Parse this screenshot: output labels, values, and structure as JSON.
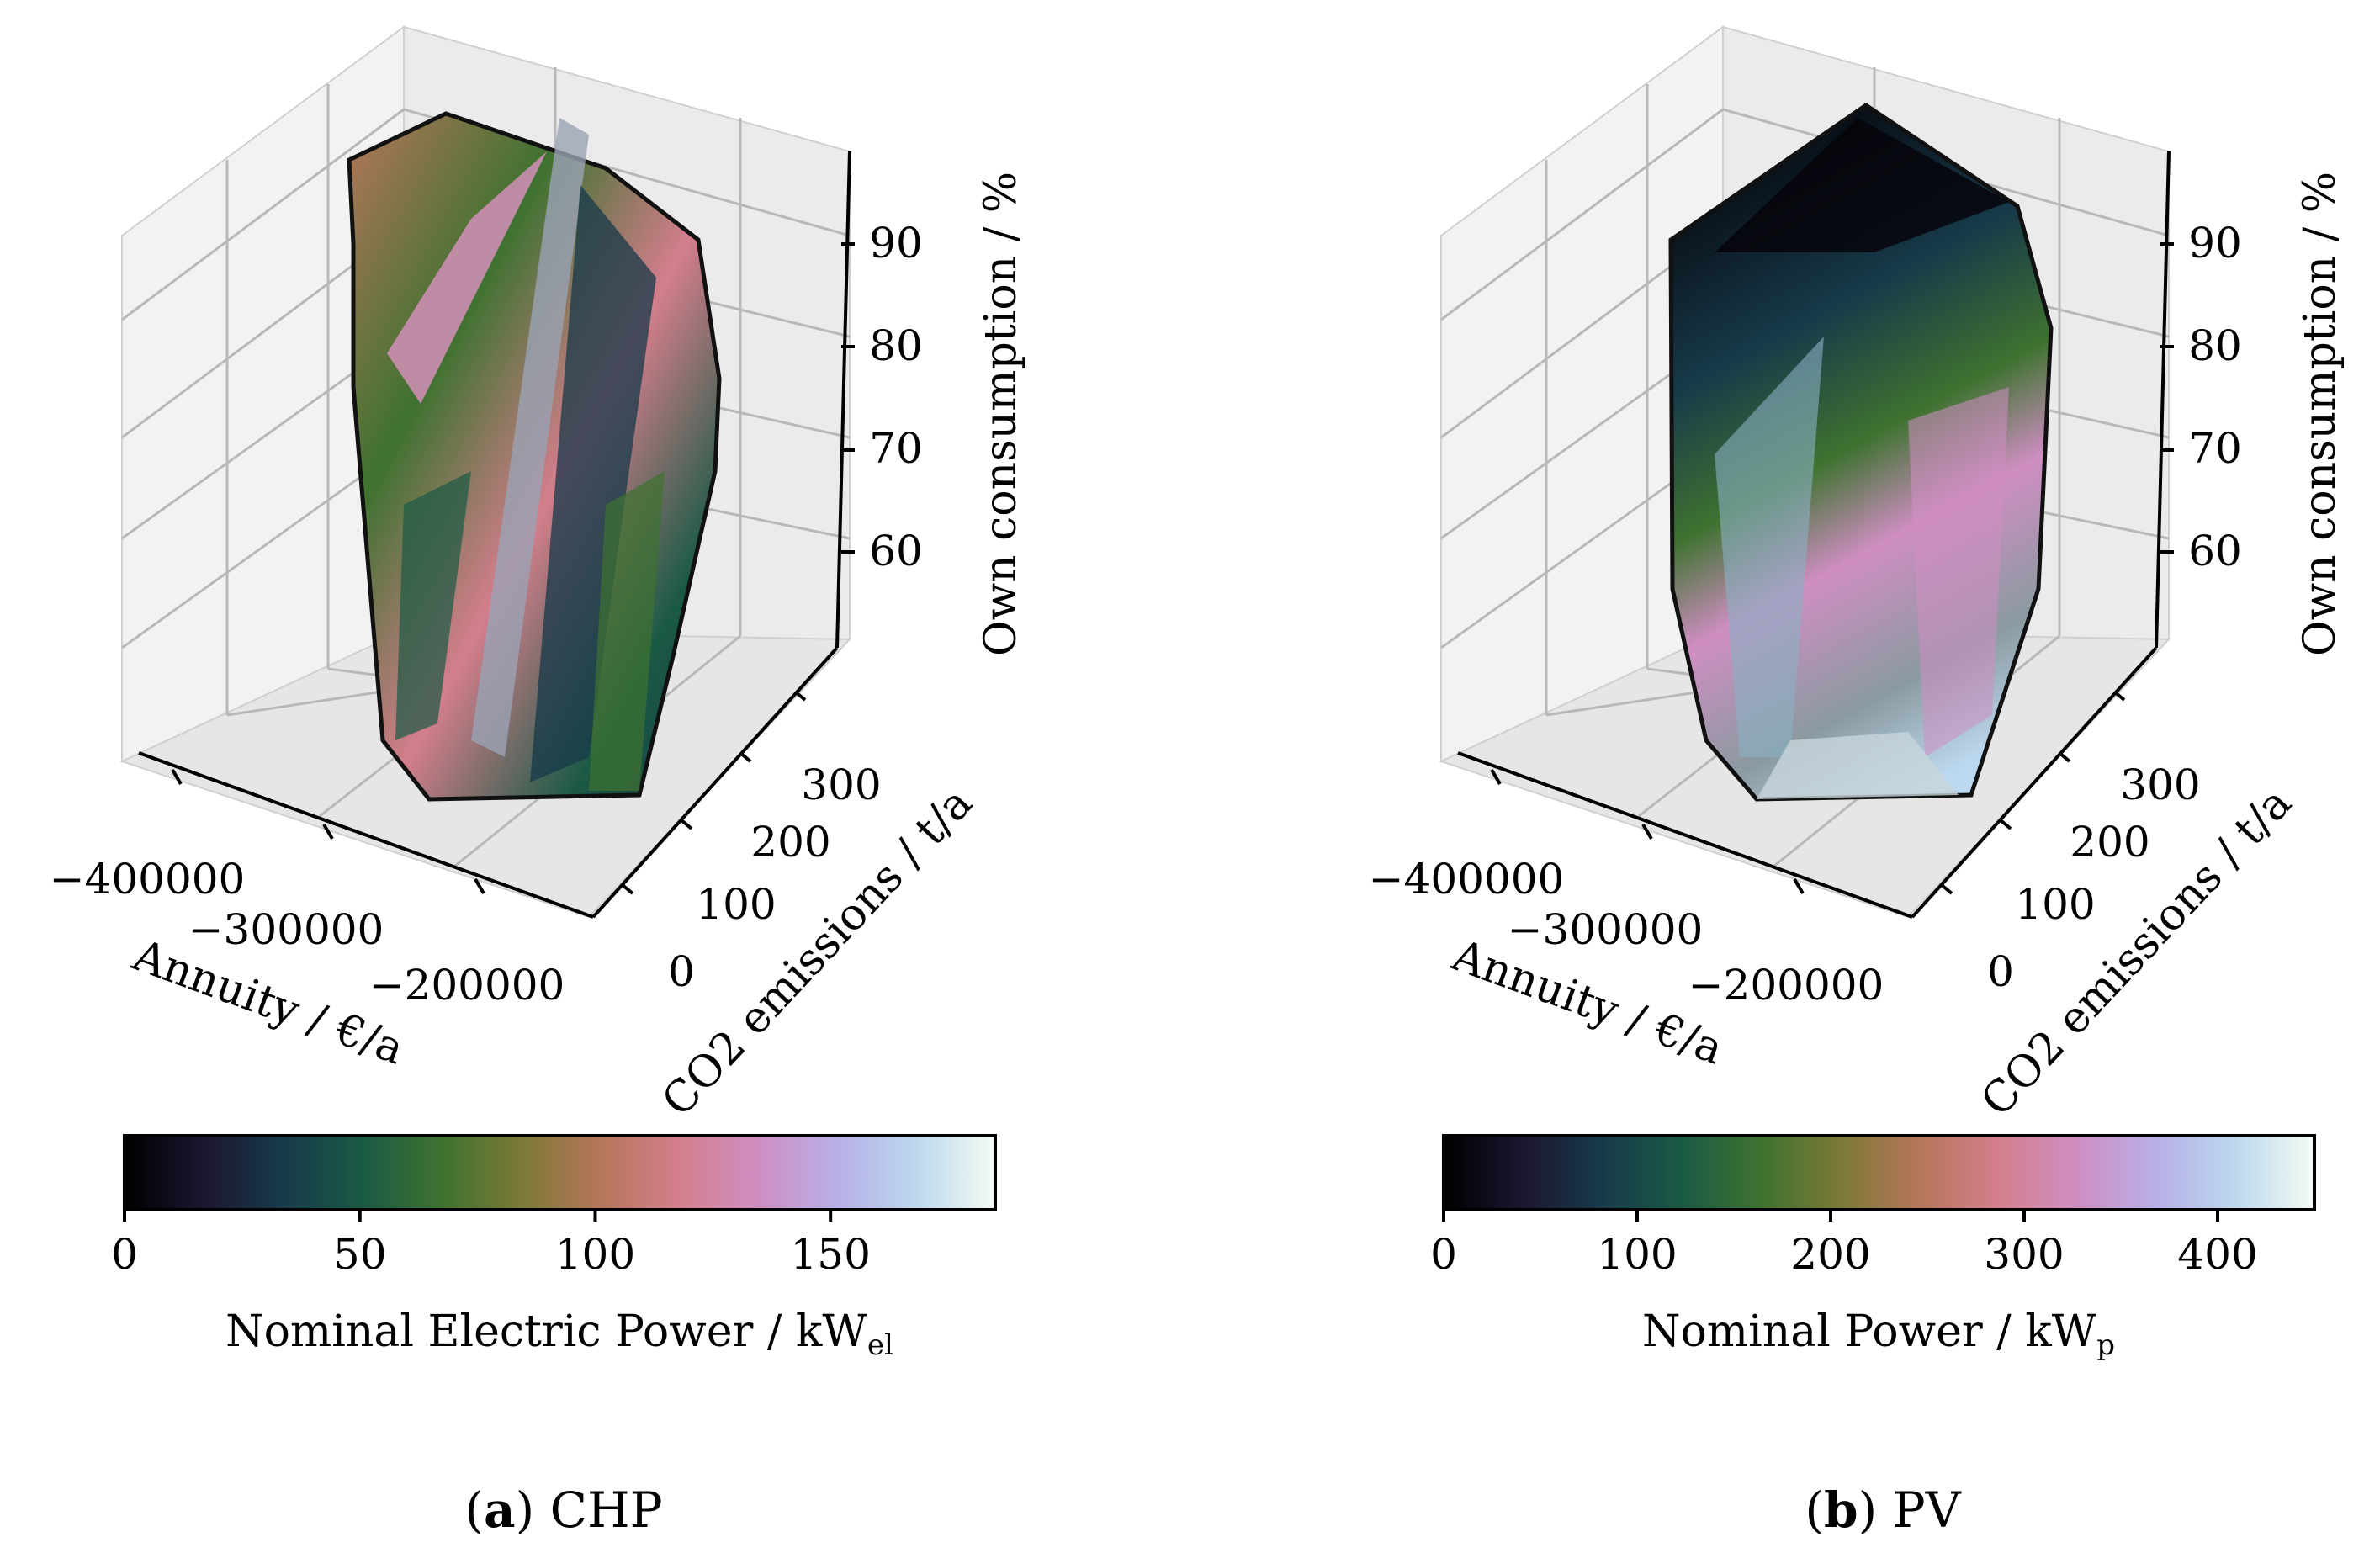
{
  "chart_data": [
    {
      "type": "3d-surface",
      "panel_label": "a",
      "caption": "CHP",
      "xlabel": "Annuity / €/a",
      "ylabel": "CO2 emissions / t/a",
      "zlabel": "Own consumption / %",
      "x_ticks": [
        "−400000",
        "−300000",
        "−200000"
      ],
      "y_ticks": [
        "0",
        "100",
        "200",
        "300"
      ],
      "z_ticks": [
        "60",
        "70",
        "80",
        "90"
      ],
      "colorbar": {
        "label": "Nominal Electric Power / kW",
        "label_subscript": "el",
        "ticks": [
          "0",
          "50",
          "100",
          "150"
        ],
        "tick_values": [
          0,
          50,
          100,
          150
        ],
        "range": [
          0,
          185
        ]
      }
    },
    {
      "type": "3d-surface",
      "panel_label": "b",
      "caption": "PV",
      "xlabel": "Annuity / €/a",
      "ylabel": "CO2 emissions / t/a",
      "zlabel": "Own consumption / %",
      "x_ticks": [
        "−400000",
        "−300000",
        "−200000"
      ],
      "y_ticks": [
        "0",
        "100",
        "200",
        "300"
      ],
      "z_ticks": [
        "60",
        "70",
        "80",
        "90"
      ],
      "colorbar": {
        "label": "Nominal Power / kW",
        "label_subscript": "p",
        "ticks": [
          "0",
          "100",
          "200",
          "300",
          "400"
        ],
        "tick_values": [
          0,
          100,
          200,
          300,
          400
        ],
        "range": [
          0,
          450
        ]
      }
    }
  ],
  "colormap": [
    "#000000",
    "#1c1530",
    "#173a4a",
    "#1a5a45",
    "#3e7230",
    "#7a7a35",
    "#b5765a",
    "#d47e8c",
    "#cf8ec2",
    "#b8b0e8",
    "#bcd8ee",
    "#f4fbf3"
  ]
}
